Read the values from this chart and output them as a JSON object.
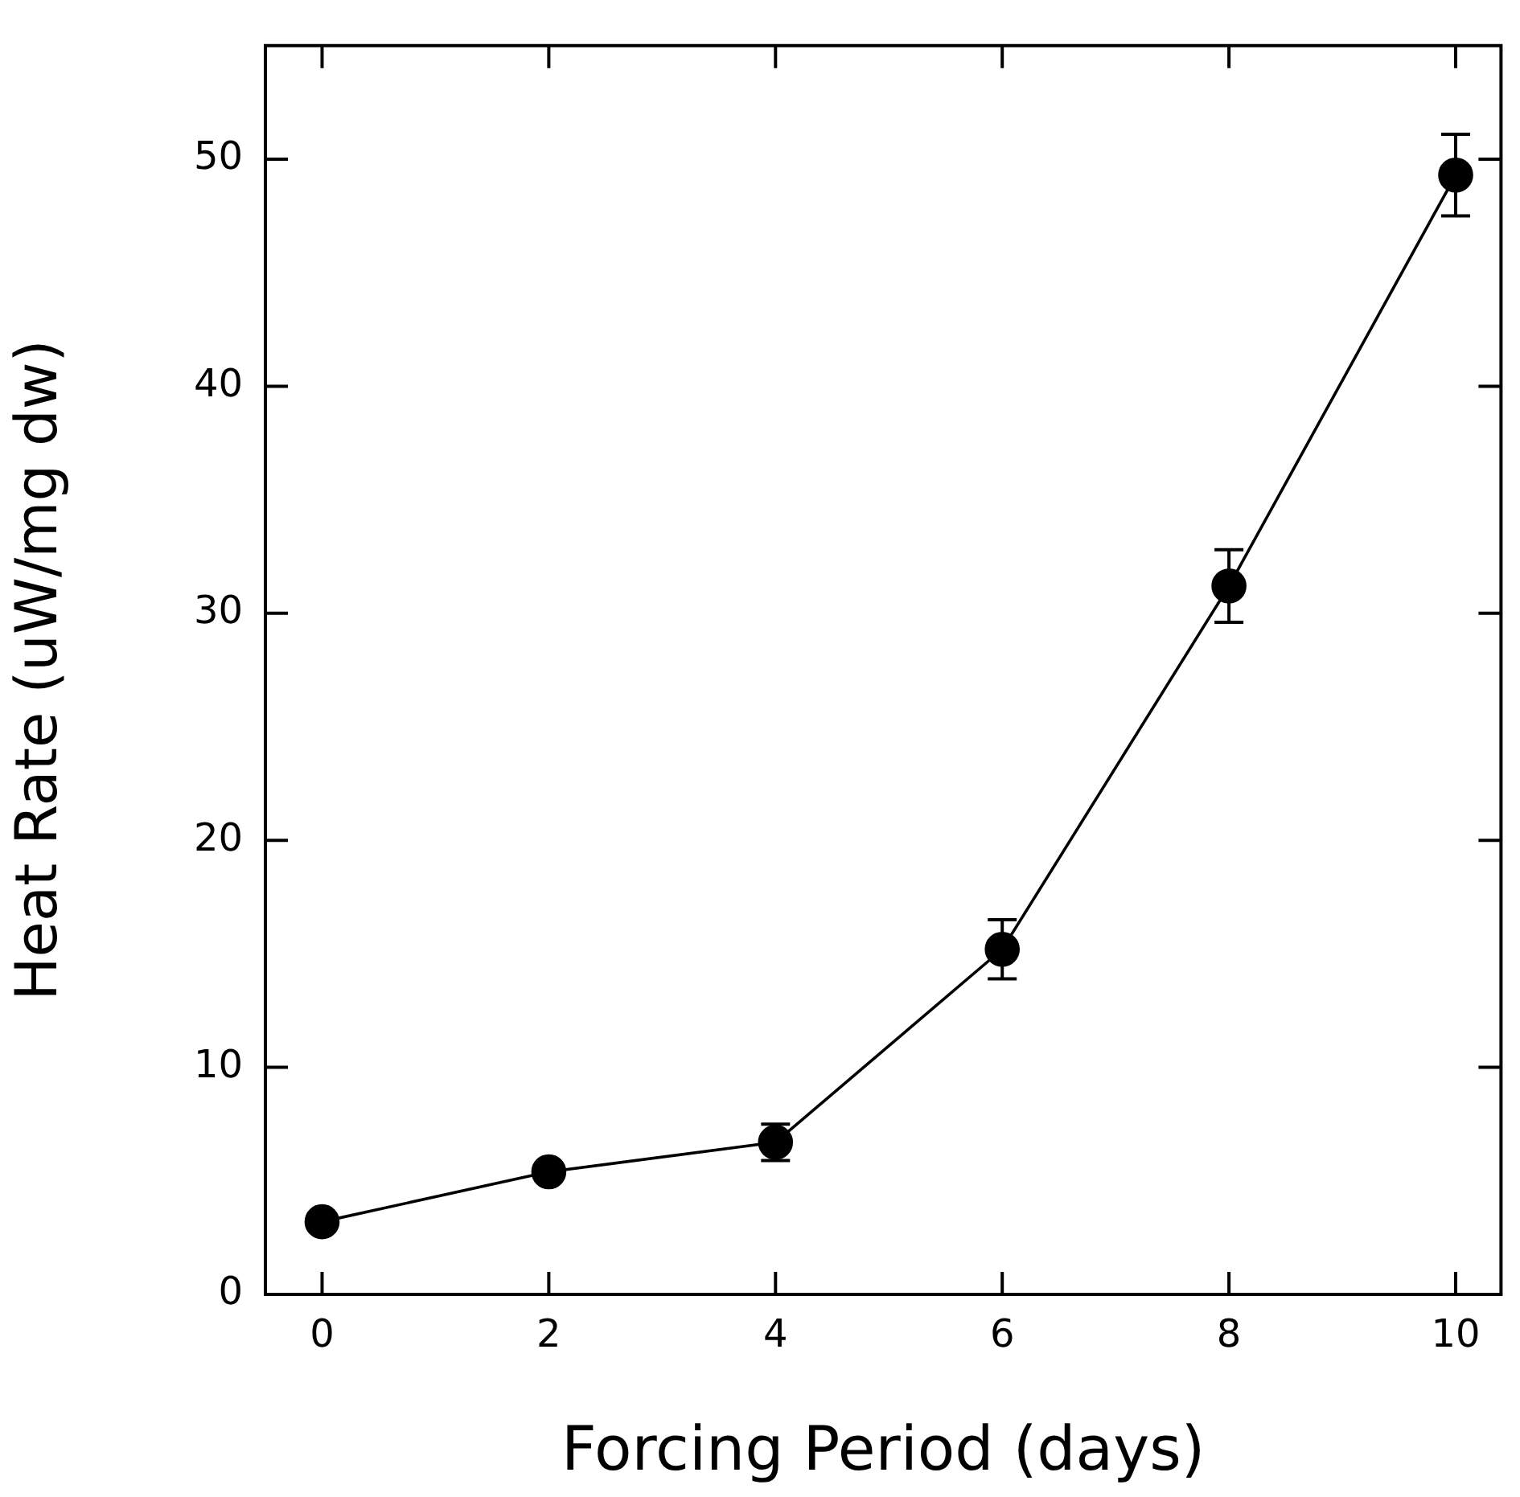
{
  "chart_data": {
    "type": "line",
    "xlabel": "Forcing Period (days)",
    "ylabel": "Heat Rate (uW/mg dw)",
    "x": [
      0,
      2,
      4,
      6,
      8,
      10
    ],
    "series": [
      {
        "color": "#000000",
        "values": [
          3.2,
          5.4,
          6.7,
          15.2,
          31.2,
          49.3
        ],
        "errors": [
          null,
          null,
          0.8,
          1.3,
          1.6,
          1.8
        ]
      }
    ],
    "xlim": [
      -0.5,
      10.4
    ],
    "xticks": [
      0,
      2,
      4,
      6,
      8,
      10
    ],
    "ylim": [
      0,
      55
    ],
    "yticks": [
      0,
      10,
      20,
      30,
      40,
      50
    ],
    "grid": false,
    "legend": false,
    "marker": "circle",
    "line_style": "solid"
  }
}
